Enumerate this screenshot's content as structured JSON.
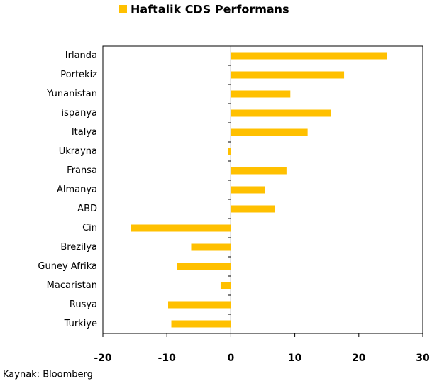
{
  "chart_data": {
    "type": "barh",
    "series": [
      {
        "name": "Haftalik CDS Performans",
        "color": "#ffc000",
        "values": [
          24.4,
          17.7,
          9.3,
          15.6,
          12.0,
          -0.4,
          8.7,
          5.3,
          6.9,
          -15.6,
          -6.2,
          -8.4,
          -1.6,
          -9.8,
          -9.3
        ]
      }
    ],
    "categories": [
      "Irlanda",
      "Portekiz",
      "Yunanistan",
      "ispanya",
      "Italya",
      "Ukrayna",
      "Fransa",
      "Almanya",
      "ABD",
      "Cin",
      "Brezilya",
      "Guney Afrika",
      "Macaristan",
      "Rusya",
      "Turkiye"
    ],
    "xlim": [
      -20,
      30
    ],
    "xticks": [
      -20,
      -10,
      0,
      10,
      20,
      30
    ],
    "source": "Kaynak: Bloomberg"
  }
}
